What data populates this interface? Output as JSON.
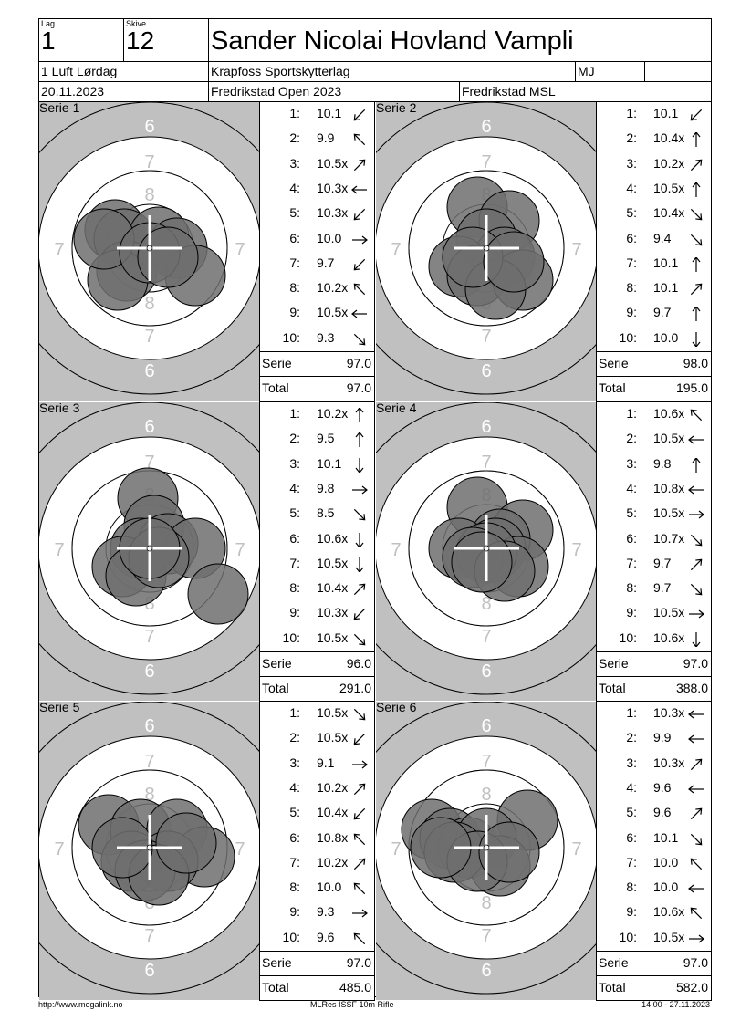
{
  "header": {
    "lag_label": "Lag",
    "lag_value": "1",
    "skive_label": "Skive",
    "skive_value": "12",
    "shooter_name": "Sander Nicolai Hovland Vampli",
    "class_name": "1 Luft Lørdag",
    "club": "Krapfoss Sportskytterlag",
    "category": "MJ",
    "date": "20.11.2023",
    "competition": "Fredrikstad Open 2023",
    "organizer": "Fredrikstad MSL"
  },
  "series": [
    {
      "title": "Serie 1",
      "shots": [
        {
          "n": "1:",
          "v": "10.1",
          "a": "sw"
        },
        {
          "n": "2:",
          "v": "9.9",
          "a": "nw"
        },
        {
          "n": "3:",
          "v": "10.5x",
          "a": "ne"
        },
        {
          "n": "4:",
          "v": "10.3x",
          "a": "w"
        },
        {
          "n": "5:",
          "v": "10.3x",
          "a": "sw"
        },
        {
          "n": "6:",
          "v": "10.0",
          "a": "e"
        },
        {
          "n": "7:",
          "v": "9.7",
          "a": "sw"
        },
        {
          "n": "8:",
          "v": "10.2x",
          "a": "nw"
        },
        {
          "n": "9:",
          "v": "10.5x",
          "a": "w"
        },
        {
          "n": "10:",
          "v": "9.3",
          "a": "se"
        }
      ],
      "serie_label": "Serie",
      "serie_value": "97.0",
      "total_label": "Total",
      "total_value": "97.0"
    },
    {
      "title": "Serie 2",
      "shots": [
        {
          "n": "1:",
          "v": "10.1",
          "a": "sw"
        },
        {
          "n": "2:",
          "v": "10.4x",
          "a": "n"
        },
        {
          "n": "3:",
          "v": "10.2x",
          "a": "ne"
        },
        {
          "n": "4:",
          "v": "10.5x",
          "a": "n"
        },
        {
          "n": "5:",
          "v": "10.4x",
          "a": "se"
        },
        {
          "n": "6:",
          "v": "9.4",
          "a": "se"
        },
        {
          "n": "7:",
          "v": "10.1",
          "a": "n"
        },
        {
          "n": "8:",
          "v": "10.1",
          "a": "ne"
        },
        {
          "n": "9:",
          "v": "9.7",
          "a": "n"
        },
        {
          "n": "10:",
          "v": "10.0",
          "a": "s"
        }
      ],
      "serie_label": "Serie",
      "serie_value": "98.0",
      "total_label": "Total",
      "total_value": "195.0"
    },
    {
      "title": "Serie 3",
      "shots": [
        {
          "n": "1:",
          "v": "10.2x",
          "a": "n"
        },
        {
          "n": "2:",
          "v": "9.5",
          "a": "n"
        },
        {
          "n": "3:",
          "v": "10.1",
          "a": "s"
        },
        {
          "n": "4:",
          "v": "9.8",
          "a": "e"
        },
        {
          "n": "5:",
          "v": "8.5",
          "a": "se"
        },
        {
          "n": "6:",
          "v": "10.6x",
          "a": "s"
        },
        {
          "n": "7:",
          "v": "10.5x",
          "a": "s"
        },
        {
          "n": "8:",
          "v": "10.4x",
          "a": "ne"
        },
        {
          "n": "9:",
          "v": "10.3x",
          "a": "sw"
        },
        {
          "n": "10:",
          "v": "10.5x",
          "a": "se"
        }
      ],
      "serie_label": "Serie",
      "serie_value": "96.0",
      "total_label": "Total",
      "total_value": "291.0"
    },
    {
      "title": "Serie 4",
      "shots": [
        {
          "n": "1:",
          "v": "10.6x",
          "a": "nw"
        },
        {
          "n": "2:",
          "v": "10.5x",
          "a": "w"
        },
        {
          "n": "3:",
          "v": "9.8",
          "a": "n"
        },
        {
          "n": "4:",
          "v": "10.8x",
          "a": "w"
        },
        {
          "n": "5:",
          "v": "10.5x",
          "a": "e"
        },
        {
          "n": "6:",
          "v": "10.7x",
          "a": "se"
        },
        {
          "n": "7:",
          "v": "9.7",
          "a": "ne"
        },
        {
          "n": "8:",
          "v": "9.7",
          "a": "se"
        },
        {
          "n": "9:",
          "v": "10.5x",
          "a": "e"
        },
        {
          "n": "10:",
          "v": "10.6x",
          "a": "s"
        }
      ],
      "serie_label": "Serie",
      "serie_value": "97.0",
      "total_label": "Total",
      "total_value": "388.0"
    },
    {
      "title": "Serie 5",
      "shots": [
        {
          "n": "1:",
          "v": "10.5x",
          "a": "se"
        },
        {
          "n": "2:",
          "v": "10.5x",
          "a": "sw"
        },
        {
          "n": "3:",
          "v": "9.1",
          "a": "e"
        },
        {
          "n": "4:",
          "v": "10.2x",
          "a": "ne"
        },
        {
          "n": "5:",
          "v": "10.4x",
          "a": "sw"
        },
        {
          "n": "6:",
          "v": "10.8x",
          "a": "nw"
        },
        {
          "n": "7:",
          "v": "10.2x",
          "a": "ne"
        },
        {
          "n": "8:",
          "v": "10.0",
          "a": "nw"
        },
        {
          "n": "9:",
          "v": "9.3",
          "a": "e"
        },
        {
          "n": "10:",
          "v": "9.6",
          "a": "nw"
        }
      ],
      "serie_label": "Serie",
      "serie_value": "97.0",
      "total_label": "Total",
      "total_value": "485.0"
    },
    {
      "title": "Serie 6",
      "shots": [
        {
          "n": "1:",
          "v": "10.3x",
          "a": "w"
        },
        {
          "n": "2:",
          "v": "9.9",
          "a": "w"
        },
        {
          "n": "3:",
          "v": "10.3x",
          "a": "ne"
        },
        {
          "n": "4:",
          "v": "9.6",
          "a": "w"
        },
        {
          "n": "5:",
          "v": "9.6",
          "a": "ne"
        },
        {
          "n": "6:",
          "v": "10.1",
          "a": "se"
        },
        {
          "n": "7:",
          "v": "10.0",
          "a": "nw"
        },
        {
          "n": "8:",
          "v": "10.0",
          "a": "w"
        },
        {
          "n": "9:",
          "v": "10.6x",
          "a": "nw"
        },
        {
          "n": "10:",
          "v": "10.5x",
          "a": "e"
        }
      ],
      "serie_label": "Serie",
      "serie_value": "97.0",
      "total_label": "Total",
      "total_value": "582.0"
    }
  ],
  "target_ring_labels": {
    "six": "6",
    "seven": "7",
    "eight": "8"
  },
  "footer": {
    "left": "http://www.megalink.no",
    "center": "MLRes ISSF 10m Rifle",
    "right": "14:00 - 27.11.2023"
  }
}
